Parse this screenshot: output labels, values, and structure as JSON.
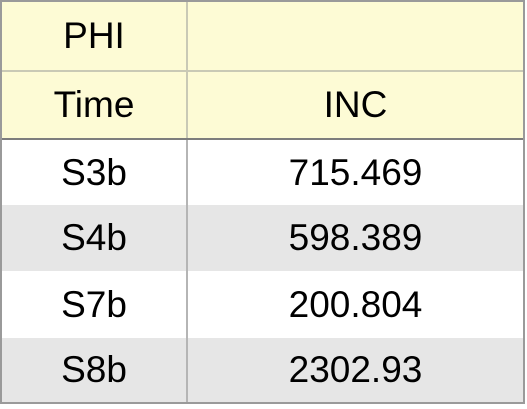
{
  "table": {
    "header_row1": [
      "PHI",
      ""
    ],
    "header_row2": [
      "Time",
      "INC"
    ],
    "rows": [
      [
        "S3b",
        "715.469"
      ],
      [
        "S4b",
        "598.389"
      ],
      [
        "S7b",
        "200.804"
      ],
      [
        "S8b",
        "2302.93"
      ]
    ]
  },
  "colors": {
    "header_bg": "#fdfbd5",
    "stripe_bg": "#e6e6e6",
    "border": "#9a9a9a"
  }
}
